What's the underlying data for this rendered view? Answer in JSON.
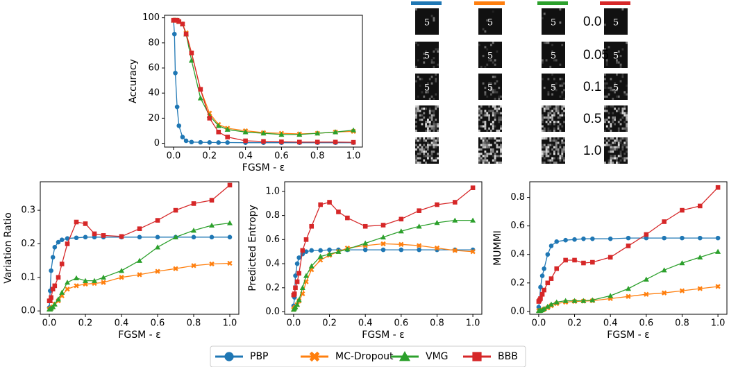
{
  "image_grid": {
    "row_labels": [
      "0.0",
      "0.05",
      "0.1",
      "0.5",
      "1.0"
    ]
  },
  "chart_data": [
    {
      "type": "line",
      "ylabel": "Accuracy",
      "xlabel": "FGSM - ε",
      "legend": "below",
      "x": [
        0,
        0.005,
        0.01,
        0.02,
        0.03,
        0.05,
        0.07,
        0.1,
        0.15,
        0.2,
        0.25,
        0.3,
        0.4,
        0.5,
        0.6,
        0.7,
        0.8,
        0.9,
        1.0
      ],
      "xlim": [
        -0.05,
        1.05
      ],
      "ylim": [
        -3,
        102
      ],
      "xticks": [
        {
          "value": 0,
          "label": "0.0"
        },
        0.2,
        0.4,
        0.6,
        0.8,
        {
          "value": 1,
          "label": "1.0"
        }
      ],
      "yticks": [
        0,
        20,
        40,
        60,
        80,
        100
      ],
      "series": [
        {
          "name": "PBP",
          "color": "#1f77b4",
          "marker": "circle",
          "values": [
            98,
            87,
            56,
            29,
            14,
            5,
            2,
            1,
            0.8,
            0.7,
            0.6,
            0.6,
            0.5,
            0.5,
            0.5,
            0.5,
            0.5,
            0.5,
            0.5
          ]
        },
        {
          "name": "MC-Dropout",
          "color": "#ff7f0e",
          "marker": "x",
          "values": [
            98,
            98,
            98,
            98,
            97,
            95,
            88,
            72,
            43,
            24,
            15,
            12,
            10,
            8.5,
            8,
            7.5,
            8,
            9,
            9.5
          ]
        },
        {
          "name": "VMG",
          "color": "#2ca02c",
          "marker": "triangle",
          "values": [
            98,
            98,
            98,
            98,
            97,
            95,
            87,
            66,
            36,
            22,
            14,
            11,
            9,
            8,
            7,
            7,
            8,
            9,
            10.5
          ]
        },
        {
          "name": "BBB",
          "color": "#d62728",
          "marker": "square",
          "values": [
            98,
            98,
            98,
            98,
            97,
            95,
            87,
            72,
            43,
            20,
            9,
            5,
            2,
            1.5,
            1.2,
            1,
            1,
            1,
            0.8
          ]
        }
      ]
    },
    {
      "type": "line",
      "ylabel": "Variation Ratio",
      "xlabel": "FGSM - ε",
      "x": [
        0,
        0.005,
        0.01,
        0.02,
        0.03,
        0.05,
        0.07,
        0.1,
        0.15,
        0.2,
        0.25,
        0.3,
        0.4,
        0.5,
        0.6,
        0.7,
        0.8,
        0.9,
        1.0
      ],
      "xlim": [
        -0.05,
        1.05
      ],
      "ylim": [
        -0.01,
        0.385
      ],
      "xticks": [
        {
          "value": 0,
          "label": "0.0"
        },
        0.2,
        0.4,
        0.6,
        0.8,
        {
          "value": 1,
          "label": "1.0"
        }
      ],
      "yticks": [
        {
          "value": 0,
          "label": "0.0"
        },
        0.1,
        0.2,
        0.3
      ],
      "series": [
        {
          "color": "#1f77b4",
          "marker": "circle",
          "values": [
            0.01,
            0.06,
            0.12,
            0.16,
            0.19,
            0.205,
            0.212,
            0.216,
            0.218,
            0.22,
            0.22,
            0.22,
            0.22,
            0.22,
            0.22,
            0.22,
            0.22,
            0.22,
            0.22
          ]
        },
        {
          "color": "#ff7f0e",
          "marker": "x",
          "values": [
            0.005,
            0.005,
            0.008,
            0.012,
            0.02,
            0.03,
            0.045,
            0.065,
            0.075,
            0.08,
            0.082,
            0.085,
            0.1,
            0.108,
            0.118,
            0.126,
            0.135,
            0.14,
            0.142
          ]
        },
        {
          "color": "#2ca02c",
          "marker": "triangle",
          "values": [
            0.005,
            0.005,
            0.008,
            0.012,
            0.02,
            0.035,
            0.055,
            0.085,
            0.098,
            0.09,
            0.09,
            0.1,
            0.12,
            0.15,
            0.19,
            0.22,
            0.24,
            0.255,
            0.262
          ]
        },
        {
          "color": "#d62728",
          "marker": "square",
          "values": [
            0.03,
            0.03,
            0.04,
            0.065,
            0.075,
            0.1,
            0.14,
            0.2,
            0.265,
            0.26,
            0.23,
            0.225,
            0.222,
            0.245,
            0.27,
            0.3,
            0.32,
            0.33,
            0.375
          ]
        }
      ]
    },
    {
      "type": "line",
      "ylabel": "Predicted Entropy",
      "xlabel": "FGSM - ε",
      "x": [
        0,
        0.005,
        0.01,
        0.02,
        0.03,
        0.05,
        0.07,
        0.1,
        0.15,
        0.2,
        0.25,
        0.3,
        0.4,
        0.5,
        0.6,
        0.7,
        0.8,
        0.9,
        1.0
      ],
      "xlim": [
        -0.05,
        1.05
      ],
      "ylim": [
        -0.02,
        1.08
      ],
      "xticks": [
        {
          "value": 0,
          "label": "0.0"
        },
        0.2,
        0.4,
        0.6,
        0.8,
        {
          "value": 1,
          "label": "1.0"
        }
      ],
      "yticks": [
        {
          "value": 0,
          "label": "0.0"
        },
        0.2,
        0.4,
        0.6,
        0.8,
        {
          "value": 1,
          "label": "1.0"
        }
      ],
      "series": [
        {
          "color": "#1f77b4",
          "marker": "circle",
          "values": [
            0.05,
            0.12,
            0.3,
            0.4,
            0.45,
            0.48,
            0.5,
            0.51,
            0.51,
            0.515,
            0.515,
            0.515,
            0.515,
            0.515,
            0.515,
            0.515,
            0.515,
            0.515,
            0.515
          ]
        },
        {
          "color": "#ff7f0e",
          "marker": "x",
          "values": [
            0.02,
            0.03,
            0.04,
            0.06,
            0.09,
            0.15,
            0.25,
            0.35,
            0.43,
            0.47,
            0.5,
            0.53,
            0.55,
            0.565,
            0.56,
            0.55,
            0.53,
            0.51,
            0.5
          ]
        },
        {
          "color": "#2ca02c",
          "marker": "triangle",
          "values": [
            0.02,
            0.03,
            0.04,
            0.06,
            0.1,
            0.2,
            0.3,
            0.38,
            0.46,
            0.48,
            0.5,
            0.52,
            0.57,
            0.62,
            0.67,
            0.71,
            0.74,
            0.76,
            0.76
          ]
        },
        {
          "color": "#d62728",
          "marker": "square",
          "values": [
            0.14,
            0.15,
            0.2,
            0.25,
            0.32,
            0.51,
            0.6,
            0.71,
            0.89,
            0.91,
            0.83,
            0.78,
            0.71,
            0.72,
            0.77,
            0.84,
            0.89,
            0.91,
            1.03
          ]
        }
      ]
    },
    {
      "type": "line",
      "ylabel": "MUMMI",
      "xlabel": "FGSM - ε",
      "x": [
        0,
        0.005,
        0.01,
        0.02,
        0.03,
        0.05,
        0.07,
        0.1,
        0.15,
        0.2,
        0.25,
        0.3,
        0.4,
        0.5,
        0.6,
        0.7,
        0.8,
        0.9,
        1.0
      ],
      "xlim": [
        -0.05,
        1.05
      ],
      "ylim": [
        -0.02,
        0.91
      ],
      "xticks": [
        {
          "value": 0,
          "label": "0.0"
        },
        0.2,
        0.4,
        0.6,
        0.8,
        {
          "value": 1,
          "label": "1.0"
        }
      ],
      "yticks": [
        {
          "value": 0,
          "label": "0.0"
        },
        0.2,
        0.4,
        0.6,
        0.8
      ],
      "series": [
        {
          "color": "#1f77b4",
          "marker": "circle",
          "values": [
            0.03,
            0.08,
            0.17,
            0.25,
            0.3,
            0.4,
            0.46,
            0.49,
            0.5,
            0.505,
            0.51,
            0.51,
            0.51,
            0.515,
            0.515,
            0.515,
            0.515,
            0.515,
            0.515
          ]
        },
        {
          "color": "#ff7f0e",
          "marker": "x",
          "values": [
            0.005,
            0.005,
            0.006,
            0.01,
            0.015,
            0.025,
            0.04,
            0.055,
            0.065,
            0.07,
            0.072,
            0.075,
            0.09,
            0.105,
            0.12,
            0.13,
            0.145,
            0.16,
            0.175
          ]
        },
        {
          "color": "#2ca02c",
          "marker": "triangle",
          "values": [
            0.005,
            0.005,
            0.006,
            0.01,
            0.02,
            0.035,
            0.05,
            0.065,
            0.075,
            0.075,
            0.075,
            0.08,
            0.11,
            0.16,
            0.225,
            0.29,
            0.34,
            0.38,
            0.42
          ]
        },
        {
          "color": "#d62728",
          "marker": "square",
          "values": [
            0.07,
            0.08,
            0.09,
            0.12,
            0.15,
            0.2,
            0.23,
            0.3,
            0.36,
            0.36,
            0.34,
            0.345,
            0.38,
            0.46,
            0.54,
            0.63,
            0.71,
            0.74,
            0.87
          ]
        }
      ]
    }
  ]
}
